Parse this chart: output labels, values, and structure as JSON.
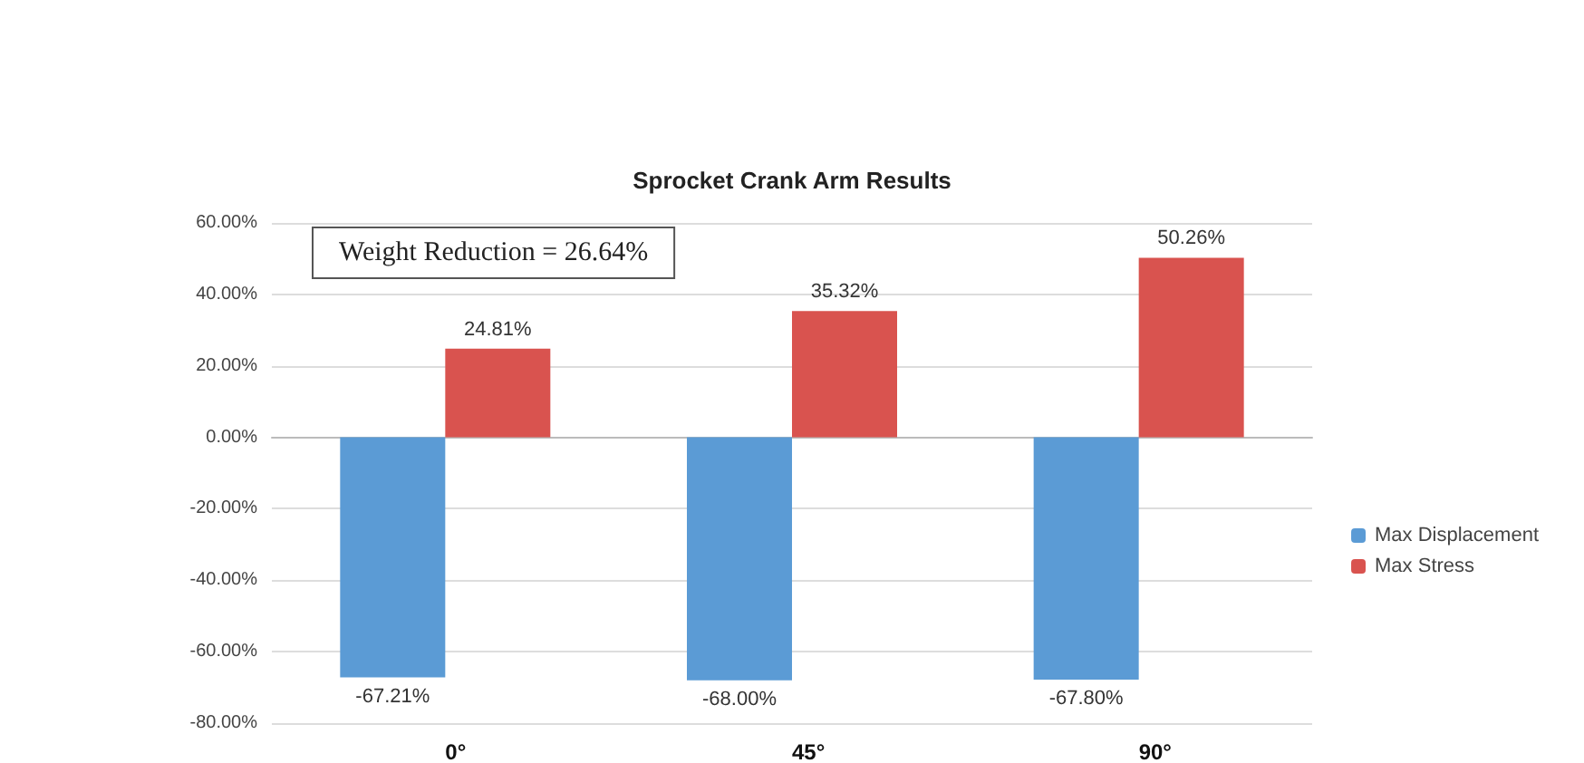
{
  "chart_data": {
    "type": "bar",
    "title": "Sprocket Crank Arm Results",
    "categories": [
      "0°",
      "45°",
      "90°"
    ],
    "series": [
      {
        "name": "Max Displacement",
        "color": "#5b9bd5",
        "values": [
          -67.21,
          -68.0,
          -67.8
        ],
        "value_labels": [
          "-67.21%",
          "-68.00%",
          "-67.80%"
        ]
      },
      {
        "name": "Max Stress",
        "color": "#d9534f",
        "values": [
          24.81,
          35.32,
          50.26
        ],
        "value_labels": [
          "24.81%",
          "35.32%",
          "50.26%"
        ]
      }
    ],
    "ylim": [
      -80,
      60
    ],
    "yticks": [
      {
        "value": -80,
        "label": "-80.00%"
      },
      {
        "value": -60,
        "label": "-60.00%"
      },
      {
        "value": -40,
        "label": "-40.00%"
      },
      {
        "value": -20,
        "label": "-20.00%"
      },
      {
        "value": 0,
        "label": "0.00%"
      },
      {
        "value": 20,
        "label": "20.00%"
      },
      {
        "value": 40,
        "label": "40.00%"
      },
      {
        "value": 60,
        "label": "60.00%"
      }
    ],
    "annotations": [
      "Weight Reduction = 26.64%"
    ],
    "grid": "y",
    "legend": "right"
  }
}
